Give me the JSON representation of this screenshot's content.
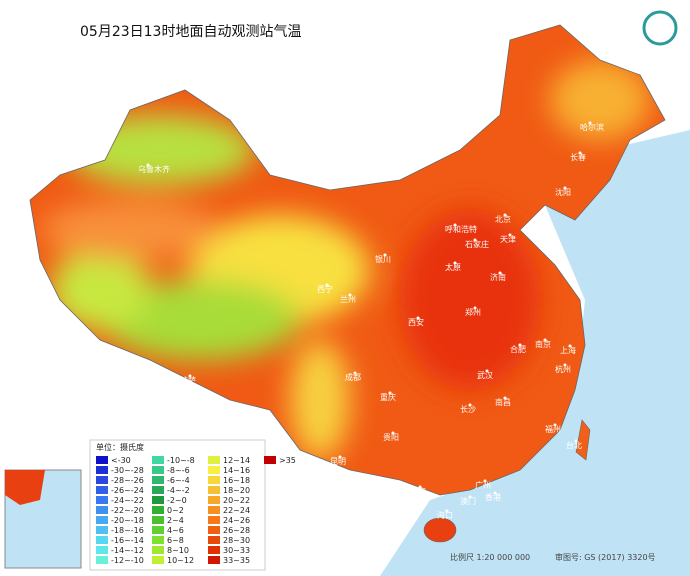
{
  "title": "05月23日13时地面自动观测站气温",
  "legend": {
    "title": "单位：摄氏度",
    "items": [
      {
        "label": "<-30",
        "color": "#1010c8"
      },
      {
        "label": "-30~-28",
        "color": "#1c30d8"
      },
      {
        "label": "-28~-26",
        "color": "#2848e0"
      },
      {
        "label": "-26~-24",
        "color": "#3060e8"
      },
      {
        "label": "-24~-22",
        "color": "#3878f0"
      },
      {
        "label": "-22~-20",
        "color": "#4090f0"
      },
      {
        "label": "-20~-18",
        "color": "#48a8f0"
      },
      {
        "label": "-18~-16",
        "color": "#50c0f0"
      },
      {
        "label": "-16~-14",
        "color": "#58d8f0"
      },
      {
        "label": "-14~-12",
        "color": "#60e8e8"
      },
      {
        "label": "-12~-10",
        "color": "#68f0d8"
      },
      {
        "label": "-10~-8",
        "color": "#40d8a0"
      },
      {
        "label": "-8~-6",
        "color": "#38c888"
      },
      {
        "label": "-6~-4",
        "color": "#30b870"
      },
      {
        "label": "-4~-2",
        "color": "#28a858"
      },
      {
        "label": "-2~0",
        "color": "#209840"
      },
      {
        "label": "0~2",
        "color": "#30b030"
      },
      {
        "label": "2~4",
        "color": "#48c030"
      },
      {
        "label": "4~6",
        "color": "#60d030"
      },
      {
        "label": "6~8",
        "color": "#80e030"
      },
      {
        "label": "8~10",
        "color": "#a0e830"
      },
      {
        "label": "10~12",
        "color": "#c0f030"
      },
      {
        "label": "12~14",
        "color": "#e0f040"
      },
      {
        "label": "14~16",
        "color": "#f8f040"
      },
      {
        "label": "16~18",
        "color": "#f8d838"
      },
      {
        "label": "18~20",
        "color": "#f8c030"
      },
      {
        "label": "20~22",
        "color": "#f8a828"
      },
      {
        "label": "22~24",
        "color": "#f89020"
      },
      {
        "label": "24~26",
        "color": "#f87818"
      },
      {
        "label": "26~28",
        "color": "#f06010"
      },
      {
        "label": "28~30",
        "color": "#e84808"
      },
      {
        "label": "30~33",
        "color": "#e03000"
      },
      {
        "label": "33~35",
        "color": "#d01800"
      },
      {
        "label": ">35",
        "color": "#c00000"
      }
    ]
  },
  "cities": [
    "乌鲁木齐",
    "哈尔滨",
    "长春",
    "沈阳",
    "北京",
    "天津",
    "呼和浩特",
    "石家庄",
    "太原",
    "济南",
    "银川",
    "西宁",
    "兰州",
    "郑州",
    "西安",
    "合肥",
    "南京",
    "上海",
    "拉萨",
    "成都",
    "武汉",
    "杭州",
    "重庆",
    "南昌",
    "长沙",
    "福州",
    "台北",
    "贵阳",
    "昆明",
    "南宁",
    "广州",
    "香港",
    "澳门",
    "海口"
  ],
  "footer": {
    "scale": "比例尺 1:20 000 000",
    "approval": "审图号: GS (2017) 3320号"
  }
}
